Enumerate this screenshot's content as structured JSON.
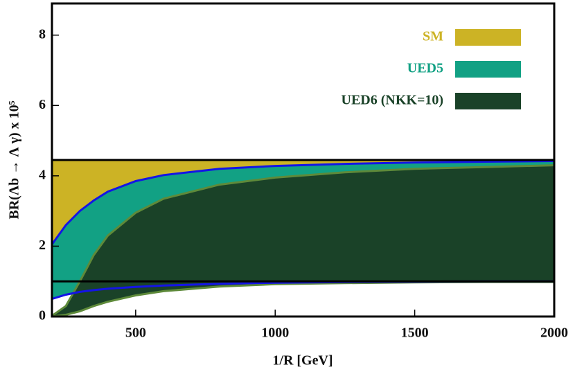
{
  "chart_data": {
    "type": "band",
    "xlabel": "1/R [GeV]",
    "ylabel": "BR(Λb → Λ γ) x 10⁵",
    "xlim": [
      200,
      2000
    ],
    "ylim": [
      0,
      8.9
    ],
    "xticks": [
      500,
      1000,
      1500,
      2000
    ],
    "yticks": [
      0,
      2,
      4,
      6,
      8
    ],
    "x": [
      200,
      250,
      300,
      350,
      400,
      500,
      600,
      800,
      1000,
      1250,
      1500,
      1750,
      2000
    ],
    "series": [
      {
        "name": "SM",
        "color": "#ccb325",
        "edge_color": "#000000",
        "upper": [
          4.45,
          4.45,
          4.45,
          4.45,
          4.45,
          4.45,
          4.45,
          4.45,
          4.45,
          4.45,
          4.45,
          4.45,
          4.45
        ],
        "lower": [
          1.0,
          1.0,
          1.0,
          1.0,
          1.0,
          1.0,
          1.0,
          1.0,
          1.0,
          1.0,
          1.0,
          1.0,
          1.0
        ]
      },
      {
        "name": "UED5",
        "color": "#12a184",
        "edge_color": "#1414e6",
        "upper": [
          2.05,
          2.6,
          3.0,
          3.3,
          3.55,
          3.85,
          4.02,
          4.2,
          4.28,
          4.34,
          4.38,
          4.4,
          4.42
        ],
        "lower": [
          0.5,
          0.62,
          0.7,
          0.75,
          0.79,
          0.84,
          0.88,
          0.93,
          0.96,
          0.98,
          0.99,
          1.0,
          1.0
        ]
      },
      {
        "name": "UED6 (NKK=10)",
        "color": "#1a4228",
        "edge_color": "#5e8a3a",
        "upper": [
          0.02,
          0.3,
          1.0,
          1.75,
          2.3,
          2.95,
          3.35,
          3.75,
          3.95,
          4.1,
          4.2,
          4.25,
          4.3
        ],
        "lower": [
          0,
          0.05,
          0.15,
          0.3,
          0.42,
          0.6,
          0.72,
          0.85,
          0.92,
          0.95,
          0.97,
          0.98,
          0.98
        ]
      }
    ]
  }
}
